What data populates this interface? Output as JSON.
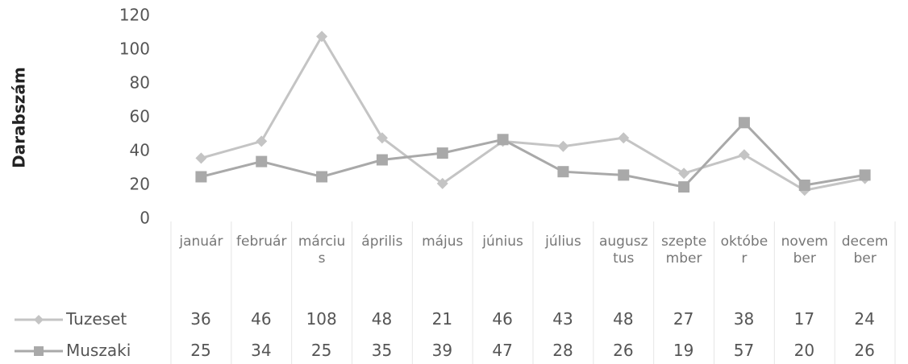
{
  "chart_data": {
    "type": "line",
    "y_label": "Darabszám",
    "categories": [
      "január",
      "február",
      "március",
      "április",
      "május",
      "június",
      "július",
      "augusztus",
      "szeptember",
      "október",
      "november",
      "december"
    ],
    "series": [
      {
        "name": "Tuzeset",
        "color": "#c4c4c4",
        "marker": "diamond",
        "values": [
          36,
          46,
          108,
          48,
          21,
          46,
          43,
          48,
          27,
          38,
          17,
          24
        ]
      },
      {
        "name": "Muszaki",
        "color": "#a9a9a9",
        "marker": "square",
        "values": [
          25,
          34,
          25,
          35,
          39,
          47,
          28,
          26,
          19,
          57,
          20,
          26
        ]
      }
    ],
    "ylim": [
      0,
      120
    ],
    "yticks": [
      0,
      20,
      40,
      60,
      80,
      100,
      120
    ],
    "grid": false
  }
}
